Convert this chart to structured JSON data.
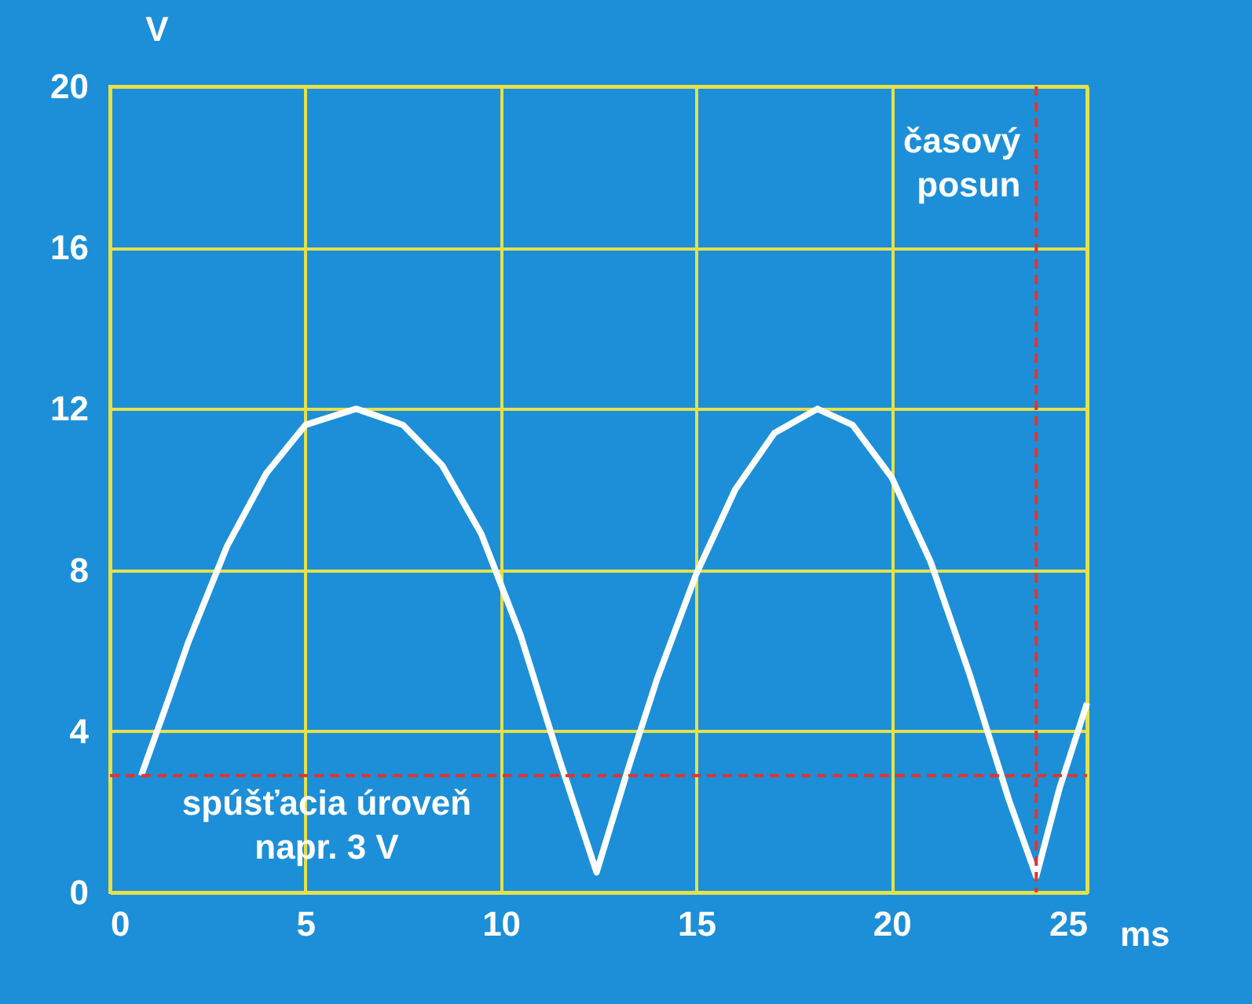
{
  "chart_data": {
    "type": "line",
    "xlabel": "ms",
    "ylabel": "V",
    "x": [
      0.8,
      1.5,
      2,
      3,
      4,
      5,
      6.3,
      7.5,
      8.5,
      9.5,
      10.5,
      11.5,
      12.45,
      13.3,
      14,
      15,
      16,
      17,
      18.1,
      19,
      20,
      21,
      22,
      23,
      23.7,
      24.3,
      25
    ],
    "series": [
      {
        "color": "#ffffff",
        "values": [
          2.9,
          4.8,
          6.2,
          8.6,
          10.4,
          11.6,
          12,
          11.6,
          10.6,
          8.9,
          6.4,
          3.3,
          0.5,
          3.2,
          5.3,
          7.9,
          10,
          11.4,
          12,
          11.6,
          10.3,
          8.2,
          5.4,
          2.3,
          0.4,
          2.6,
          4.7
        ]
      }
    ],
    "xlim": [
      0,
      25
    ],
    "xticks": [
      0,
      5,
      10,
      15,
      20,
      25
    ],
    "ylim": [
      0,
      20
    ],
    "yticks": [
      0,
      4,
      8,
      12,
      16,
      20
    ],
    "grid": true,
    "marker": "none",
    "line_style": "solid",
    "ref_lines": [
      {
        "axis": "y",
        "value": 2.9,
        "label": "spúšťacia úroveň\nnapr. 3 V",
        "color": "#e8322a",
        "line_style": "dashed"
      },
      {
        "axis": "x",
        "value": 23.7,
        "label": "časový\nposun",
        "color": "#e8322a",
        "line_style": "dashed"
      }
    ]
  }
}
